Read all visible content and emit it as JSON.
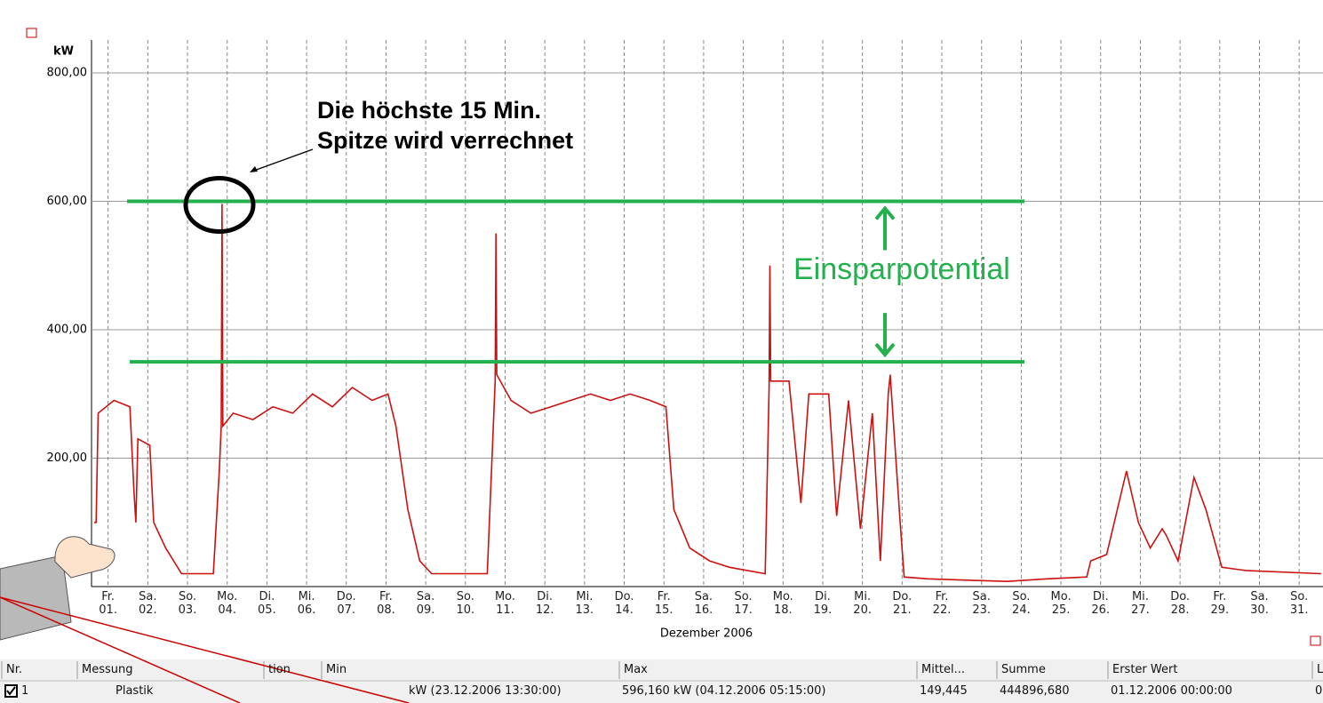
{
  "chart_data": {
    "type": "line",
    "annotations": [
      "Die höchste 15 Min.\nSpitze wird verrechnet",
      "Einsparpotential"
    ],
    "y_label": "kW",
    "x_label": "Dezember 2006",
    "ylim": [
      0,
      800
    ],
    "yticks": [
      {
        "value": 200,
        "label": "200,00"
      },
      {
        "value": 400,
        "label": "400,00"
      },
      {
        "value": 600,
        "label": "600,00"
      },
      {
        "value": 800,
        "label": "800,00"
      }
    ],
    "xlim": [
      1,
      31.95
    ],
    "xticks": [
      {
        "value": 1,
        "label": "Fr.\n01."
      },
      {
        "value": 2,
        "label": "Sa.\n02."
      },
      {
        "value": 3,
        "label": "So.\n03."
      },
      {
        "value": 4,
        "label": "Mo.\n04."
      },
      {
        "value": 5,
        "label": "Di.\n05."
      },
      {
        "value": 6,
        "label": "Mi.\n06."
      },
      {
        "value": 7,
        "label": "Do.\n07."
      },
      {
        "value": 8,
        "label": "Fr.\n08."
      },
      {
        "value": 9,
        "label": "Sa.\n09."
      },
      {
        "value": 10,
        "label": "So.\n10."
      },
      {
        "value": 11,
        "label": "Mo.\n11."
      },
      {
        "value": 12,
        "label": "Di.\n12."
      },
      {
        "value": 13,
        "label": "Mi.\n13."
      },
      {
        "value": 14,
        "label": "Do.\n14."
      },
      {
        "value": 15,
        "label": "Fr.\n15."
      },
      {
        "value": 16,
        "label": "Sa.\n16."
      },
      {
        "value": 17,
        "label": "So.\n17."
      },
      {
        "value": 18,
        "label": "Mo.\n18."
      },
      {
        "value": 19,
        "label": "Di.\n19."
      },
      {
        "value": 20,
        "label": "Mi.\n20."
      },
      {
        "value": 21,
        "label": "Do.\n21."
      },
      {
        "value": 22,
        "label": "Fr.\n22."
      },
      {
        "value": 23,
        "label": "Sa.\n23."
      },
      {
        "value": 24,
        "label": "So.\n24."
      },
      {
        "value": 25,
        "label": "Mo.\n25."
      },
      {
        "value": 26,
        "label": "Di.\n26."
      },
      {
        "value": 27,
        "label": "Mi.\n27."
      },
      {
        "value": 28,
        "label": "Do.\n28."
      },
      {
        "value": 29,
        "label": "Fr.\n29."
      },
      {
        "value": 30,
        "label": "Sa.\n30."
      },
      {
        "value": 31,
        "label": "So.\n31."
      }
    ],
    "grid": true,
    "reference_lines": [
      600,
      350
    ],
    "reference_color": "#22b14c",
    "series": [
      {
        "name": "Plastik",
        "color": "#cc1111",
        "x": [
          1.0,
          1.05,
          1.1,
          1.5,
          1.9,
          2.0,
          2.05,
          2.1,
          2.4,
          2.5,
          2.8,
          3.0,
          3.2,
          4.0,
          4.15,
          4.2,
          4.22,
          4.24,
          4.5,
          5,
          5.5,
          6,
          6.5,
          7,
          7.5,
          8,
          8.4,
          8.6,
          8.9,
          9.2,
          9.5,
          10.9,
          11.1,
          11.12,
          11.14,
          11.5,
          12,
          12.5,
          13,
          13.5,
          14,
          14.5,
          15,
          15.4,
          15.6,
          16,
          16.5,
          17,
          17.9,
          18.0,
          18.02,
          18.04,
          18.5,
          18.8,
          19,
          19.5,
          19.7,
          20,
          20.3,
          20.6,
          20.8,
          21,
          21.05,
          21.3,
          21.4,
          22,
          23,
          24,
          25,
          26,
          26.1,
          26.5,
          27,
          27.3,
          27.6,
          27.9,
          28,
          28.3,
          28.7,
          29,
          29.4,
          30,
          31.9
        ],
        "values": [
          100,
          100,
          270,
          290,
          280,
          150,
          100,
          230,
          220,
          100,
          60,
          40,
          20,
          20,
          180,
          250,
          596,
          250,
          270,
          260,
          280,
          270,
          300,
          280,
          310,
          290,
          300,
          250,
          120,
          40,
          20,
          20,
          320,
          550,
          330,
          290,
          270,
          280,
          290,
          300,
          290,
          300,
          290,
          280,
          120,
          60,
          40,
          30,
          20,
          310,
          500,
          320,
          320,
          130,
          300,
          300,
          110,
          290,
          90,
          270,
          40,
          300,
          330,
          100,
          15,
          12,
          10,
          8,
          12,
          15,
          40,
          50,
          180,
          100,
          60,
          90,
          80,
          40,
          170,
          120,
          30,
          25,
          20
        ]
      }
    ]
  },
  "table": {
    "headers": [
      "Nr.",
      "Messung",
      "tion",
      "Min",
      "Max",
      "Mittel...",
      "Summe",
      "Erster Wert",
      "L"
    ],
    "rows": [
      [
        "1",
        "Plastik",
        "",
        "kW (23.12.2006 13:30:00)",
        "596,160 kW (04.12.2006 05:15:00)",
        "149,445",
        "444896,680",
        "01.12.2006 00:00:00",
        "0"
      ]
    ]
  }
}
